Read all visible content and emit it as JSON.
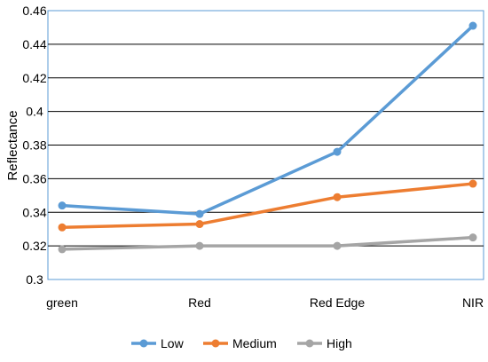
{
  "chart_data": {
    "type": "line",
    "title": "",
    "xlabel": "",
    "ylabel": "Reflectance",
    "categories": [
      "green",
      "Red",
      "Red Edge",
      "NIR"
    ],
    "ylim": [
      0.3,
      0.46
    ],
    "yticks": [
      0.3,
      0.32,
      0.34,
      0.36,
      0.38,
      0.4,
      0.42,
      0.44,
      0.46
    ],
    "ytick_labels": [
      "0.3",
      "0.32",
      "0.34",
      "0.36",
      "0.38",
      "0.4",
      "0.42",
      "0.44",
      "0.46"
    ],
    "grid": "horizontal",
    "legend_position": "bottom",
    "series": [
      {
        "name": "Low",
        "color": "#5b9bd5",
        "values": [
          0.344,
          0.339,
          0.376,
          0.451
        ]
      },
      {
        "name": "Medium",
        "color": "#ed7d31",
        "values": [
          0.331,
          0.333,
          0.349,
          0.357
        ]
      },
      {
        "name": "High",
        "color": "#a5a5a5",
        "values": [
          0.318,
          0.32,
          0.32,
          0.325
        ]
      }
    ]
  }
}
